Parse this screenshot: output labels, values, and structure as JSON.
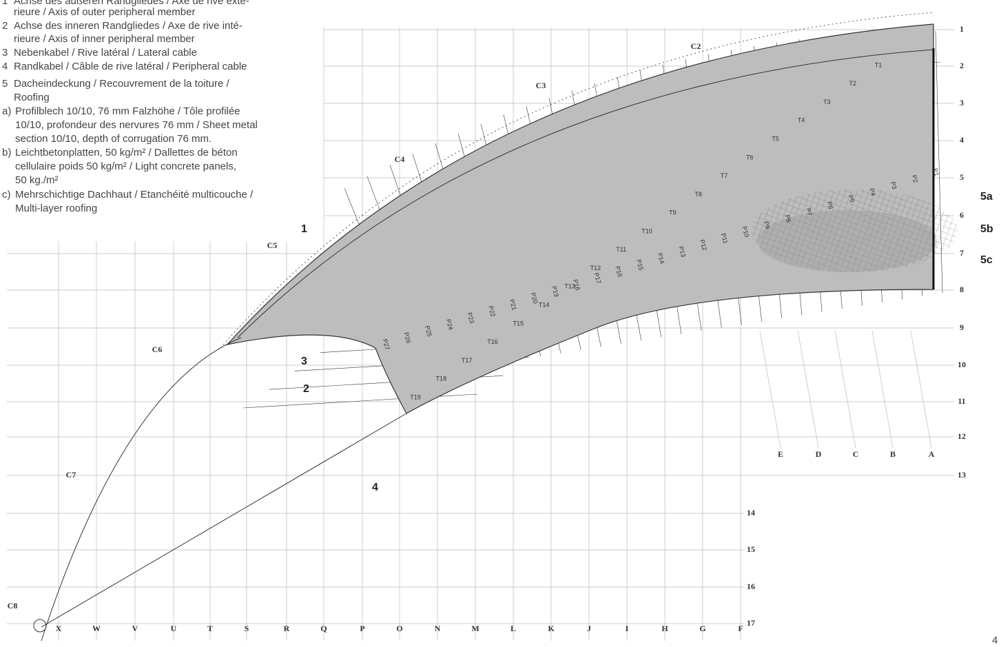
{
  "legend": [
    {
      "marker": "1",
      "lines": [
        "Achse des äußeren Randgliedes / Axe de rive exté-",
        "rieure / Axis of outer peripheral member"
      ]
    },
    {
      "marker": "2",
      "lines": [
        "Achse des inneren Randgliedes / Axe de rive inté-",
        "rieure / Axis of inner peripheral member"
      ]
    },
    {
      "marker": "3",
      "lines": [
        "Nebenkabel / Rive latéral / Lateral cable"
      ]
    },
    {
      "marker": "4",
      "lines": [
        "Randkabel / Câble de rive latéral / Peripheral cable"
      ]
    },
    {
      "marker": "5",
      "lines": [
        "Dacheindeckung / Recouvrement de la toiture /",
        "Roofing"
      ]
    },
    {
      "marker": "a)",
      "lines": [
        "Profilblech 10/10, 76 mm Falzhöhe / Tôle profilée",
        "10/10, profondeur des nervures 76 mm / Sheet metal",
        "section 10/10, depth of corrugation 76 mm."
      ]
    },
    {
      "marker": "b)",
      "lines": [
        "Leichtbetonplatten, 50 kg/m² / Dallettes de béton",
        "cellulaire poids 50 kg/m² / Light concrete panels,",
        "50 kg./m²"
      ]
    },
    {
      "marker": "c)",
      "lines": [
        "Mehrschichtige Dachhaut / Etanchéité multicouche /",
        "Multi-layer roofing"
      ]
    }
  ],
  "callouts": [
    "1",
    "2",
    "3",
    "4",
    "5a",
    "5b",
    "5c"
  ],
  "bottom_letters": [
    "X",
    "W",
    "V",
    "U",
    "T",
    "S",
    "R",
    "Q",
    "P",
    "O",
    "N",
    "M",
    "L",
    "K",
    "J",
    "I",
    "H",
    "G",
    "F"
  ],
  "right_numbers": [
    "1",
    "2",
    "3",
    "4",
    "5",
    "6",
    "7",
    "8",
    "9",
    "10",
    "11",
    "12",
    "13"
  ],
  "lower_numbers": [
    "14",
    "15",
    "16",
    "17"
  ],
  "side_letters": [
    "E",
    "D",
    "C",
    "B",
    "A"
  ],
  "zones": [
    "C2",
    "C3",
    "C4",
    "C5",
    "C6",
    "C7",
    "C8"
  ],
  "t_labels": [
    "T1",
    "T2",
    "T3",
    "T4",
    "T5",
    "T6",
    "T7",
    "T8",
    "T9",
    "T10",
    "T11",
    "T12",
    "T13",
    "T14",
    "T15",
    "T16",
    "T17",
    "T18",
    "T19"
  ],
  "p_labels": [
    "P1",
    "P2",
    "P3",
    "P4",
    "P5",
    "P6",
    "P7",
    "P8",
    "P9",
    "P10",
    "P11",
    "P12",
    "P13",
    "P14",
    "P15",
    "P16",
    "P17",
    "P18",
    "P19",
    "P20",
    "P21",
    "P22",
    "P23",
    "P24",
    "P25",
    "P26",
    "P27"
  ],
  "page_number": "4"
}
